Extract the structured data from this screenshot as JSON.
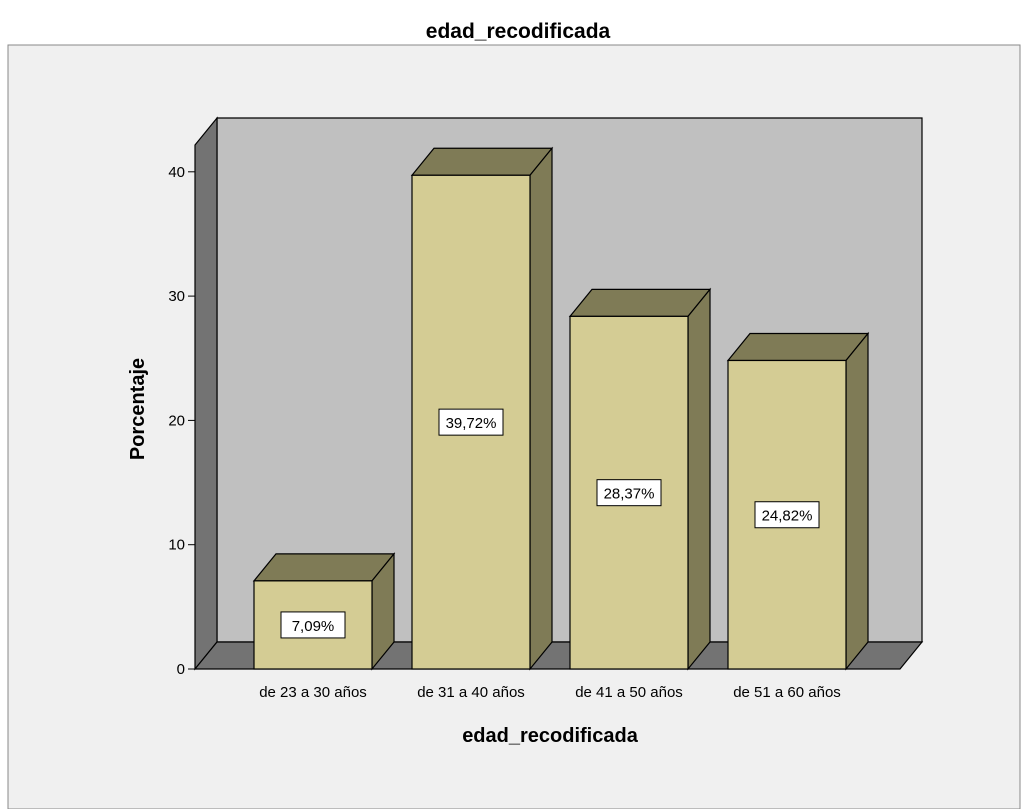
{
  "chart_data": {
    "type": "bar",
    "style": "3d",
    "title": "edad_recodificada",
    "xlabel": "edad_recodificada",
    "ylabel": "Porcentaje",
    "categories": [
      "de 23 a 30 años",
      "de 31 a 40 años",
      "de 41 a 50 años",
      "de 51 a 60 años"
    ],
    "values": [
      7.09,
      39.72,
      28.37,
      24.82
    ],
    "data_labels": [
      "7,09%",
      "39,72%",
      "28,37%",
      "24,82%"
    ],
    "yticks": [
      "0",
      "10",
      "20",
      "30",
      "40"
    ],
    "ylim": [
      0,
      40
    ],
    "grid": false,
    "legend": "none",
    "colors": {
      "bar_front": "#d4cc94",
      "bar_top": "#7f7b56",
      "bar_side": "#7f7b56",
      "back_wall": "#c0c0c0",
      "left_wall": "#737373",
      "floor": "#737373",
      "chart_area": "#f0f0f0"
    }
  }
}
